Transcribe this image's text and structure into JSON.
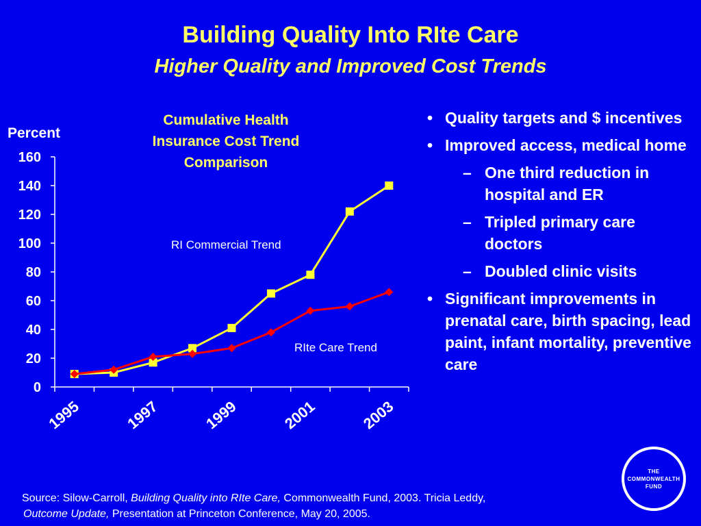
{
  "title": "Building Quality Into RIte Care",
  "subtitle": "Higher Quality and Improved Cost Trends",
  "chart_data": {
    "type": "line",
    "title": "Cumulative Health\nInsurance Cost Trend\nComparison",
    "ylabel": "Percent",
    "xlabel": "",
    "ylim": [
      0,
      160
    ],
    "yticks": [
      0,
      20,
      40,
      60,
      80,
      100,
      120,
      140,
      160
    ],
    "categories": [
      "1995",
      "1996",
      "1997",
      "1998",
      "1999",
      "2000",
      "2001",
      "2002",
      "2003"
    ],
    "x_tick_labels": [
      "1995",
      "1997",
      "1999",
      "2001",
      "2003"
    ],
    "series": [
      {
        "name": "RI Commercial Trend",
        "color": "#ffff33",
        "marker": "square",
        "values": [
          9,
          10,
          17,
          27,
          41,
          65,
          78,
          122,
          140
        ]
      },
      {
        "name": "RIte Care Trend",
        "color": "#ff0000",
        "marker": "diamond",
        "values": [
          9,
          12,
          21,
          23,
          27,
          38,
          53,
          56,
          66
        ]
      }
    ],
    "grid": false,
    "legend": "inline labels"
  },
  "bullets": [
    {
      "level": 1,
      "marker": "•",
      "text": "Quality targets and $ incentives"
    },
    {
      "level": 1,
      "marker": "•",
      "text": "Improved access, medical home"
    },
    {
      "level": 2,
      "marker": "–",
      "text": "One third reduction in hospital and ER"
    },
    {
      "level": 2,
      "marker": "–",
      "text": "Tripled primary care doctors"
    },
    {
      "level": 2,
      "marker": "–",
      "text": "Doubled clinic visits"
    },
    {
      "level": 1,
      "marker": "•",
      "text": "Significant improvements in prenatal care, birth spacing, lead paint, infant mortality, preventive care"
    }
  ],
  "source": {
    "prefix": "Source:  Silow-Carroll, ",
    "title1": "Building Quality into RIte Care,",
    "middle": " Commonwealth Fund, 2003. Tricia Leddy, ",
    "title2": "Outcome Update,",
    "suffix": " Presentation at Princeton Conference, May 20, 2005."
  },
  "logo": {
    "text": "THE\nCOMMONWEALTH\nFUND"
  },
  "colors": {
    "background": "#0000ee",
    "title": "#ffff66",
    "text": "#ffffff"
  }
}
